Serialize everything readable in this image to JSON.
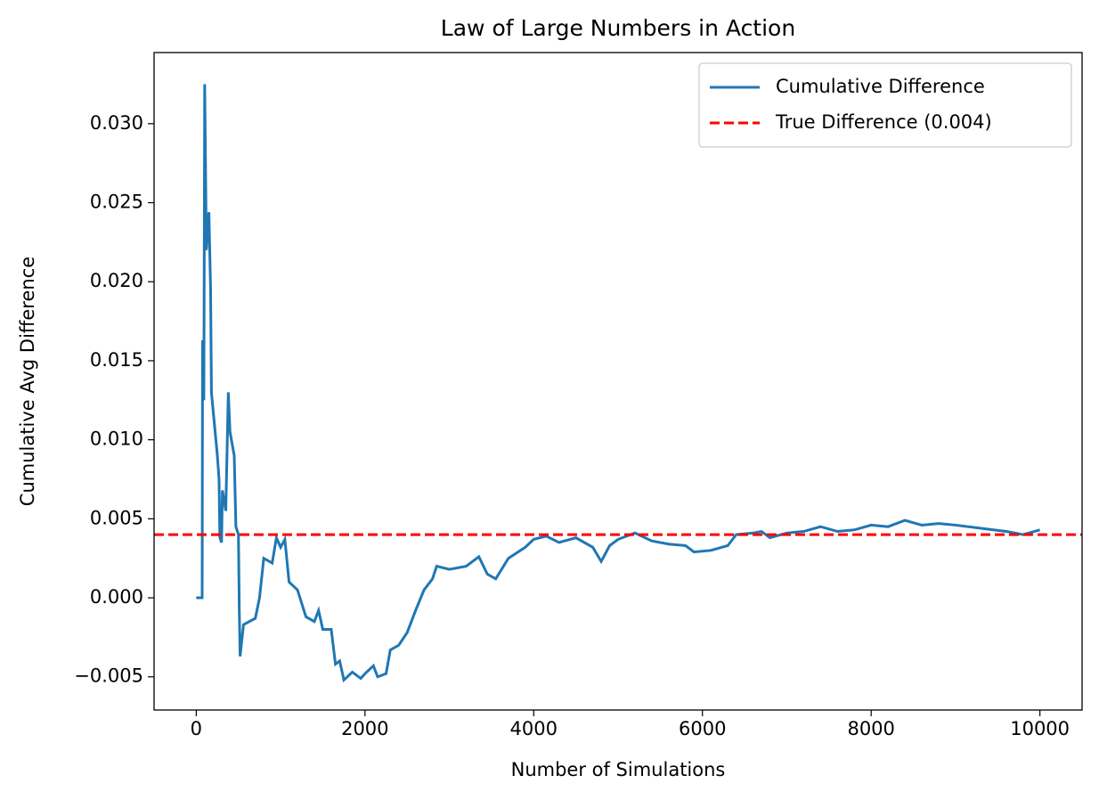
{
  "chart_data": {
    "type": "line",
    "title": "Law of Large Numbers in Action",
    "xlabel": "Number of Simulations",
    "ylabel": "Cumulative Avg Difference",
    "xlim": [
      -500,
      10500
    ],
    "ylim": [
      -0.0071,
      0.0345
    ],
    "xticks": [
      0,
      2000,
      4000,
      6000,
      8000,
      10000
    ],
    "yticks": [
      {
        "value": -0.005,
        "label": "−0.005"
      },
      {
        "value": 0,
        "label": "0.000"
      },
      {
        "value": 0.005,
        "label": "0.005"
      },
      {
        "value": 0.01,
        "label": "0.010"
      },
      {
        "value": 0.015,
        "label": "0.015"
      },
      {
        "value": 0.02,
        "label": "0.020"
      },
      {
        "value": 0.025,
        "label": "0.025"
      },
      {
        "value": 0.03,
        "label": "0.030"
      }
    ],
    "legend": "upper right",
    "x": [
      0,
      70,
      75,
      90,
      100,
      120,
      150,
      170,
      180,
      250,
      270,
      280,
      300,
      310,
      350,
      380,
      400,
      450,
      470,
      500,
      510,
      520,
      560,
      700,
      750,
      800,
      900,
      950,
      1000,
      1050,
      1100,
      1200,
      1300,
      1400,
      1450,
      1500,
      1600,
      1650,
      1700,
      1750,
      1850,
      1950,
      2000,
      2100,
      2150,
      2250,
      2300,
      2400,
      2500,
      2600,
      2700,
      2800,
      2850,
      3000,
      3200,
      3350,
      3450,
      3550,
      3700,
      3900,
      4000,
      4150,
      4300,
      4500,
      4700,
      4800,
      4900,
      5000,
      5200,
      5400,
      5600,
      5800,
      5900,
      6100,
      6300,
      6400,
      6600,
      6700,
      6800,
      7000,
      7200,
      7400,
      7600,
      7800,
      8000,
      8200,
      8400,
      8600,
      8800,
      9000,
      9300,
      9600,
      9800,
      10000
    ],
    "series": [
      {
        "name": "Cumulative Difference",
        "color": "#1f77b4",
        "values": [
          0,
          0,
          0.0163,
          0.0125,
          0.0325,
          0.022,
          0.0244,
          0.0195,
          0.013,
          0.009,
          0.0075,
          0.0038,
          0.0035,
          0.0068,
          0.0055,
          0.013,
          0.0105,
          0.009,
          0.0045,
          0.004,
          -0.0008,
          -0.0037,
          -0.0017,
          -0.0013,
          0,
          0.0025,
          0.0022,
          0.0038,
          0.0032,
          0.0037,
          0.001,
          0.0005,
          -0.0012,
          -0.0015,
          -0.0008,
          -0.002,
          -0.002,
          -0.0042,
          -0.004,
          -0.0052,
          -0.0047,
          -0.0051,
          -0.0048,
          -0.0043,
          -0.005,
          -0.0048,
          -0.0033,
          -0.003,
          -0.0022,
          -0.0008,
          0.0005,
          0.0012,
          0.002,
          0.0018,
          0.002,
          0.0026,
          0.0015,
          0.0012,
          0.0025,
          0.0032,
          0.0037,
          0.0039,
          0.0035,
          0.0038,
          0.0032,
          0.0023,
          0.0033,
          0.0037,
          0.0041,
          0.0036,
          0.0034,
          0.0033,
          0.0029,
          0.003,
          0.0033,
          0.004,
          0.0041,
          0.0042,
          0.0038,
          0.0041,
          0.0042,
          0.0045,
          0.0042,
          0.0043,
          0.0046,
          0.0045,
          0.0049,
          0.0046,
          0.0047,
          0.0046,
          0.0044,
          0.0042,
          0.004,
          0.0043
        ]
      }
    ],
    "reference_lines": [
      {
        "name": "True Difference (0.004)",
        "value": 0.004,
        "color": "#ff0000",
        "style": "dashed"
      }
    ]
  }
}
